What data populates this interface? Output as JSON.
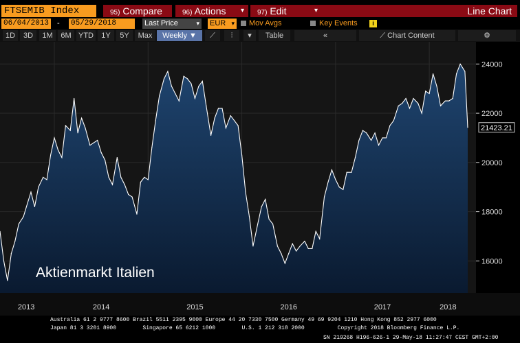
{
  "toolbar": {
    "ticker": "FTSEMIB Index",
    "compare": {
      "num": "95)",
      "label": "Compare"
    },
    "actions": {
      "num": "96)",
      "label": "Actions"
    },
    "edit": {
      "num": "97)",
      "label": "Edit"
    },
    "view": "Line Chart"
  },
  "settings": {
    "start_date": "06/04/2013",
    "separator": "-",
    "end_date": "05/29/2018",
    "field": "Last Price",
    "currency": "EUR",
    "mov_avgs": "Mov Avgs",
    "key_events": "Key Events"
  },
  "periods": [
    "1D",
    "3D",
    "1M",
    "6M",
    "YTD",
    "1Y",
    "5Y",
    "Max"
  ],
  "frequency": "Weekly",
  "table_label": "Table",
  "chart_content_label": "Chart Content",
  "colors": {
    "accent_orange": "#f89b1f",
    "brand_red": "#8a0a14",
    "line": "#ffffff",
    "fill_top": "#1c3a5e",
    "fill_bottom": "#0b1a2e"
  },
  "chart_data": {
    "type": "area",
    "caption": "Aktienmarkt Italien",
    "last_value_label": "21423.21",
    "ylim": [
      14700,
      24900
    ],
    "yticks": [
      16000,
      18000,
      20000,
      22000,
      24000
    ],
    "year_labels": [
      "2013",
      "2014",
      "2015",
      "2016",
      "2017",
      "2018"
    ],
    "year_positions": [
      2013.7,
      2014.5,
      2015.5,
      2016.5,
      2017.5,
      2018.2
    ],
    "x_range": [
      2013.42,
      2018.41
    ],
    "x": [
      2013.42,
      2013.46,
      2013.5,
      2013.54,
      2013.58,
      2013.62,
      2013.67,
      2013.71,
      2013.75,
      2013.79,
      2013.83,
      2013.88,
      2013.92,
      2013.96,
      2014.0,
      2014.04,
      2014.08,
      2014.12,
      2014.17,
      2014.21,
      2014.25,
      2014.29,
      2014.33,
      2014.38,
      2014.42,
      2014.46,
      2014.5,
      2014.54,
      2014.58,
      2014.62,
      2014.67,
      2014.71,
      2014.75,
      2014.79,
      2014.83,
      2014.88,
      2014.92,
      2014.96,
      2015.0,
      2015.04,
      2015.08,
      2015.12,
      2015.17,
      2015.21,
      2015.25,
      2015.29,
      2015.33,
      2015.38,
      2015.42,
      2015.46,
      2015.5,
      2015.54,
      2015.58,
      2015.62,
      2015.67,
      2015.71,
      2015.75,
      2015.79,
      2015.83,
      2015.88,
      2015.92,
      2015.96,
      2016.0,
      2016.04,
      2016.08,
      2016.12,
      2016.17,
      2016.21,
      2016.25,
      2016.29,
      2016.33,
      2016.38,
      2016.42,
      2016.46,
      2016.5,
      2016.54,
      2016.58,
      2016.62,
      2016.67,
      2016.71,
      2016.75,
      2016.79,
      2016.83,
      2016.88,
      2016.92,
      2016.96,
      2017.0,
      2017.04,
      2017.08,
      2017.12,
      2017.17,
      2017.21,
      2017.25,
      2017.29,
      2017.33,
      2017.38,
      2017.42,
      2017.46,
      2017.5,
      2017.54,
      2017.58,
      2017.62,
      2017.67,
      2017.71,
      2017.75,
      2017.79,
      2017.83,
      2017.88,
      2017.92,
      2017.96,
      2018.0,
      2018.04,
      2018.08,
      2018.12,
      2018.17,
      2018.21,
      2018.25,
      2018.29,
      2018.33,
      2018.38,
      2018.41
    ],
    "y": [
      17200,
      16000,
      15200,
      16300,
      16800,
      17500,
      17800,
      18300,
      18800,
      18200,
      19000,
      19400,
      19300,
      20300,
      21000,
      20500,
      20200,
      21500,
      21300,
      22600,
      21200,
      21800,
      21400,
      20700,
      20800,
      20900,
      20400,
      20100,
      19400,
      19100,
      20200,
      19400,
      19100,
      18700,
      18600,
      17900,
      19200,
      19400,
      19300,
      20600,
      21700,
      22700,
      23400,
      23700,
      23100,
      22800,
      22500,
      23500,
      23400,
      23200,
      22600,
      23100,
      23300,
      22300,
      21100,
      21800,
      22200,
      22200,
      21400,
      21900,
      21700,
      21500,
      20300,
      18800,
      17800,
      16600,
      17500,
      18200,
      18500,
      17700,
      17500,
      16600,
      16300,
      15900,
      16300,
      16700,
      16400,
      16600,
      16800,
      16500,
      16500,
      17200,
      16900,
      18600,
      19200,
      19700,
      19300,
      19000,
      18900,
      19600,
      19600,
      20200,
      20900,
      21300,
      21200,
      20900,
      21200,
      20700,
      21000,
      21000,
      21500,
      21700,
      22300,
      22400,
      22600,
      22200,
      22600,
      22400,
      22000,
      22900,
      22800,
      23600,
      23100,
      22300,
      22500,
      22500,
      22600,
      23600,
      24000,
      23700,
      21423.21
    ]
  },
  "footer": {
    "line1": "Australia 61 2 9777 8600 Brazil 5511 2395 9000 Europe 44 20 7330 7500 Germany 49 69 9204 1210 Hong Kong 852 2977 6000",
    "line2": "Japan 81 3 3201 8900        Singapore 65 6212 1000        U.S. 1 212 318 2000          Copyright 2018 Bloomberg Finance L.P.",
    "line3": "SN 219268 H196-626-1 29-May-18 11:27:47 CEST GMT+2:00"
  }
}
